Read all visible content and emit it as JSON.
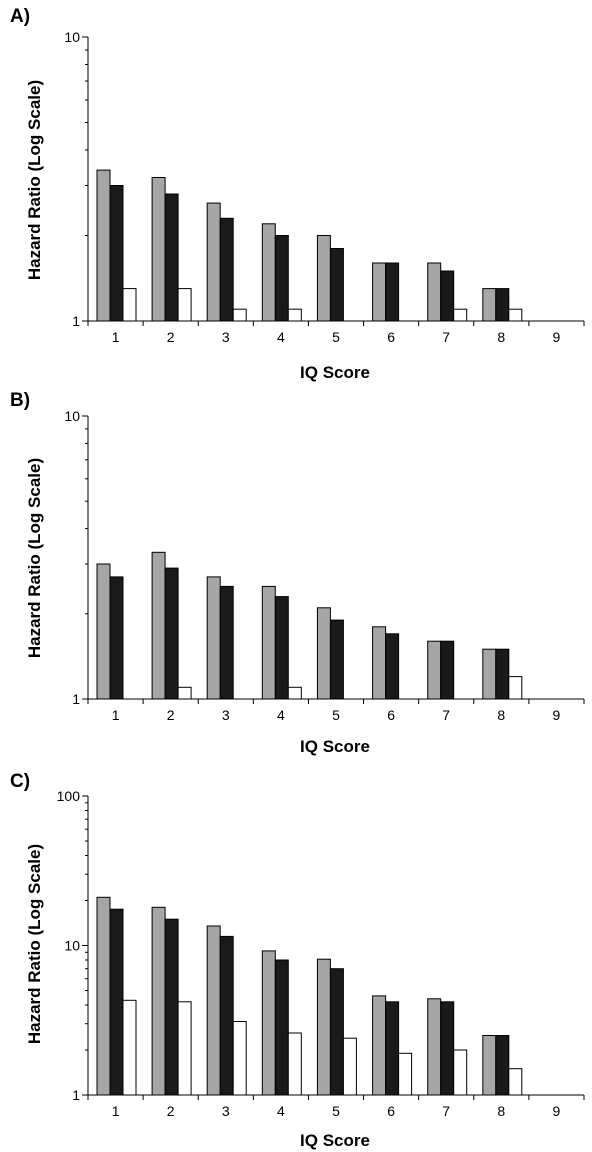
{
  "chart_data": [
    {
      "type": "bar",
      "panel_label": "A)",
      "xlabel": "IQ Score",
      "ylabel": "Hazard Ratio (Log Scale)",
      "yscale": "log",
      "ylim": [
        1,
        10
      ],
      "yticks": [
        1,
        10
      ],
      "categories": [
        "1",
        "2",
        "3",
        "4",
        "5",
        "6",
        "7",
        "8",
        "9"
      ],
      "series": [
        {
          "color": "#a6a6a6",
          "values": [
            3.4,
            3.2,
            2.6,
            2.2,
            2.0,
            1.6,
            1.6,
            1.3,
            null
          ]
        },
        {
          "color": "#1a1a1a",
          "values": [
            3.0,
            2.8,
            2.3,
            2.0,
            1.8,
            1.6,
            1.5,
            1.3,
            null
          ]
        },
        {
          "color": "#ffffff",
          "values": [
            1.3,
            1.3,
            1.1,
            1.1,
            null,
            null,
            1.1,
            1.1,
            null
          ]
        }
      ]
    },
    {
      "type": "bar",
      "panel_label": "B)",
      "xlabel": "IQ Score",
      "ylabel": "Hazard Ratio (Log Scale)",
      "yscale": "log",
      "ylim": [
        1,
        10
      ],
      "yticks": [
        1,
        10
      ],
      "categories": [
        "1",
        "2",
        "3",
        "4",
        "5",
        "6",
        "7",
        "8",
        "9"
      ],
      "series": [
        {
          "color": "#a6a6a6",
          "values": [
            3.0,
            3.3,
            2.7,
            2.5,
            2.1,
            1.8,
            1.6,
            1.5,
            null
          ]
        },
        {
          "color": "#1a1a1a",
          "values": [
            2.7,
            2.9,
            2.5,
            2.3,
            1.9,
            1.7,
            1.6,
            1.5,
            null
          ]
        },
        {
          "color": "#ffffff",
          "values": [
            null,
            1.1,
            null,
            1.1,
            null,
            null,
            null,
            1.2,
            null
          ]
        }
      ]
    },
    {
      "type": "bar",
      "panel_label": "C)",
      "xlabel": "IQ Score",
      "ylabel": "Hazard Ratio (Log Scale)",
      "yscale": "log",
      "ylim": [
        1,
        100
      ],
      "yticks": [
        1,
        10,
        100
      ],
      "categories": [
        "1",
        "2",
        "3",
        "4",
        "5",
        "6",
        "7",
        "8",
        "9"
      ],
      "series": [
        {
          "color": "#a6a6a6",
          "values": [
            21,
            18,
            13.5,
            9.2,
            8.1,
            4.6,
            4.4,
            2.5,
            null
          ]
        },
        {
          "color": "#1a1a1a",
          "values": [
            17.5,
            15,
            11.5,
            8.0,
            7.0,
            4.2,
            4.2,
            2.5,
            null
          ]
        },
        {
          "color": "#ffffff",
          "values": [
            4.3,
            4.2,
            3.1,
            2.6,
            2.4,
            1.9,
            2.0,
            1.5,
            null
          ]
        }
      ]
    }
  ]
}
